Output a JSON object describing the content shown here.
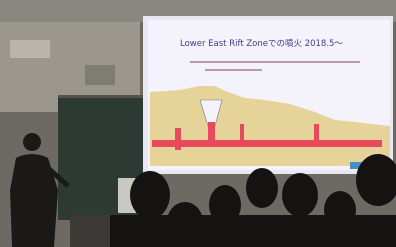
{
  "slide": {
    "title": "Lower East Rift Zoneでの噴火 2018.5～"
  }
}
